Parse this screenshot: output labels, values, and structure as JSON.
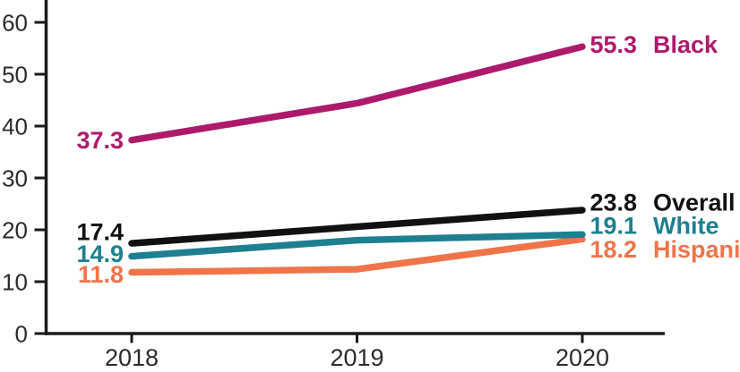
{
  "chart_data": {
    "type": "line",
    "title": "",
    "xlabel": "",
    "ylabel": "",
    "x_categories": [
      "2018",
      "2019",
      "2020"
    ],
    "y_ticks": [
      0,
      10,
      20,
      30,
      40,
      50,
      60
    ],
    "ylim": [
      0,
      64
    ],
    "grid": false,
    "legend_position": "right-inline",
    "axis_color": "#1a1a1a",
    "tick_label_color": "#2b2b2b",
    "series": [
      {
        "name": "Black",
        "color": "#ae1a6b",
        "values": [
          37.3,
          44.4,
          55.3
        ],
        "start_label": "37.3",
        "end_label": "55.3"
      },
      {
        "name": "Overall",
        "color": "#111111",
        "values": [
          17.4,
          20.6,
          23.8
        ],
        "start_label": "17.4",
        "end_label": "23.8"
      },
      {
        "name": "White",
        "color": "#1d7f8f",
        "values": [
          14.9,
          18.0,
          19.1
        ],
        "start_label": "14.9",
        "end_label": "19.1"
      },
      {
        "name": "Hispanic",
        "color": "#f0744a",
        "values": [
          11.8,
          12.4,
          18.2
        ],
        "start_label": "11.8",
        "end_label": "18.2"
      }
    ]
  }
}
